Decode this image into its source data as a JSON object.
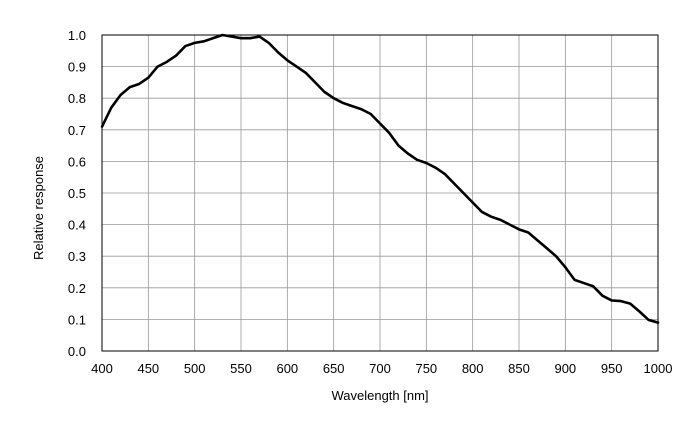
{
  "chart_data": {
    "type": "line",
    "title": "",
    "xlabel": "Wavelength [nm]",
    "ylabel": "Relative response",
    "xlim": [
      400,
      1000
    ],
    "ylim": [
      0,
      1.0
    ],
    "grid": true,
    "legend": "none",
    "x_ticks": [
      "400",
      "450",
      "500",
      "550",
      "600",
      "650",
      "700",
      "750",
      "800",
      "850",
      "900",
      "950",
      "1000"
    ],
    "y_ticks": [
      "0.0",
      "0.1",
      "0.2",
      "0.3",
      "0.4",
      "0.5",
      "0.6",
      "0.7",
      "0.8",
      "0.9",
      "1.0"
    ],
    "series": [
      {
        "color": "#000000",
        "points": [
          [
            400,
            0.71
          ],
          [
            410,
            0.77
          ],
          [
            420,
            0.81
          ],
          [
            430,
            0.835
          ],
          [
            440,
            0.845
          ],
          [
            450,
            0.865
          ],
          [
            460,
            0.9
          ],
          [
            470,
            0.915
          ],
          [
            480,
            0.935
          ],
          [
            490,
            0.965
          ],
          [
            500,
            0.975
          ],
          [
            510,
            0.98
          ],
          [
            520,
            0.99
          ],
          [
            530,
            1.0
          ],
          [
            540,
            0.995
          ],
          [
            550,
            0.99
          ],
          [
            560,
            0.99
          ],
          [
            570,
            0.995
          ],
          [
            580,
            0.975
          ],
          [
            590,
            0.945
          ],
          [
            600,
            0.92
          ],
          [
            610,
            0.9
          ],
          [
            620,
            0.88
          ],
          [
            630,
            0.85
          ],
          [
            640,
            0.82
          ],
          [
            650,
            0.8
          ],
          [
            660,
            0.785
          ],
          [
            670,
            0.775
          ],
          [
            680,
            0.765
          ],
          [
            690,
            0.75
          ],
          [
            700,
            0.72
          ],
          [
            710,
            0.69
          ],
          [
            720,
            0.65
          ],
          [
            730,
            0.625
          ],
          [
            740,
            0.605
          ],
          [
            750,
            0.595
          ],
          [
            760,
            0.58
          ],
          [
            770,
            0.56
          ],
          [
            780,
            0.53
          ],
          [
            790,
            0.5
          ],
          [
            800,
            0.47
          ],
          [
            810,
            0.44
          ],
          [
            820,
            0.425
          ],
          [
            830,
            0.415
          ],
          [
            840,
            0.4
          ],
          [
            850,
            0.385
          ],
          [
            860,
            0.375
          ],
          [
            870,
            0.35
          ],
          [
            880,
            0.325
          ],
          [
            890,
            0.3
          ],
          [
            900,
            0.265
          ],
          [
            910,
            0.225
          ],
          [
            920,
            0.215
          ],
          [
            930,
            0.205
          ],
          [
            940,
            0.175
          ],
          [
            950,
            0.16
          ],
          [
            960,
            0.158
          ],
          [
            970,
            0.15
          ],
          [
            980,
            0.125
          ],
          [
            990,
            0.098
          ],
          [
            1000,
            0.09
          ]
        ]
      }
    ]
  }
}
